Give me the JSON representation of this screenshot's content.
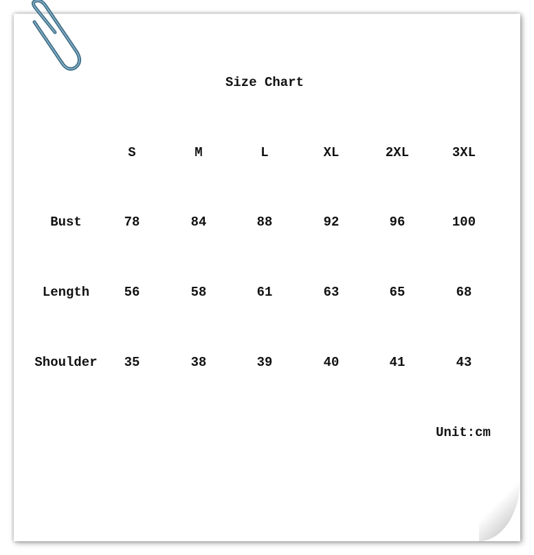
{
  "title": "Size Chart",
  "columns": [
    "S",
    "M",
    "L",
    "XL",
    "2XL",
    "3XL"
  ],
  "rows": [
    {
      "label": "Bust",
      "values": [
        "78",
        "84",
        "88",
        "92",
        "96",
        "100"
      ]
    },
    {
      "label": "Length",
      "values": [
        "56",
        "58",
        "61",
        "63",
        "65",
        "68"
      ]
    },
    {
      "label": "Shoulder",
      "values": [
        "35",
        "38",
        "39",
        "40",
        "41",
        "43"
      ]
    }
  ],
  "unit": "Unit:cm",
  "clip_color": "#4a7a94"
}
